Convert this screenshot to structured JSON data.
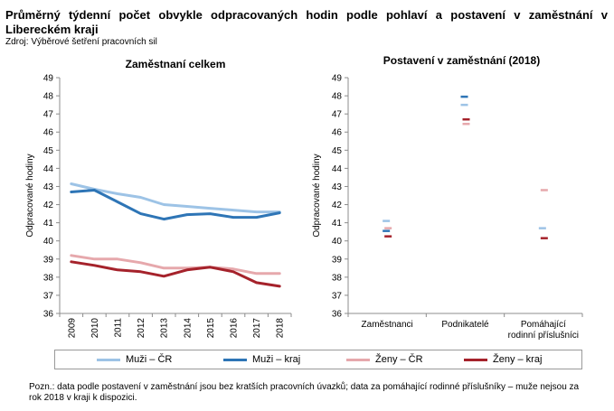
{
  "header": {
    "title": "Průměrný týdenní počet obvykle odpracovaných hodin podle pohlaví a postavení v zaměstnání v Libereckém kraji",
    "source": "Zdroj: Výběrové šetření pracovních sil"
  },
  "legend": {
    "items": [
      {
        "label": "Muži – ČR",
        "color": "#9dc3e6"
      },
      {
        "label": "Muži – kraj",
        "color": "#2e75b6"
      },
      {
        "label": "Ženy – ČR",
        "color": "#e6a8ac"
      },
      {
        "label": "Ženy – kraj",
        "color": "#a5222b"
      }
    ]
  },
  "note": "Pozn.: data podle postavení v zaměstnání jsou bez kratších pracovních úvazků; data za pomáhající rodinné příslušníky – muže nejsou za rok 2018 v kraji k dispozici.",
  "chart_data": [
    {
      "type": "line",
      "title": "Zaměstnaní celkem",
      "xlabel": "",
      "ylabel": "Odpracované hodiny",
      "ylim": [
        36,
        49
      ],
      "yticks": [
        36,
        37,
        38,
        39,
        40,
        41,
        42,
        43,
        44,
        45,
        46,
        47,
        48,
        49
      ],
      "grid": false,
      "categories": [
        "2009",
        "2010",
        "2011",
        "2012",
        "2013",
        "2014",
        "2015",
        "2016",
        "2017",
        "2018"
      ],
      "series": [
        {
          "name": "Muži – ČR",
          "color": "#9dc3e6",
          "values": [
            43.15,
            42.85,
            42.6,
            42.4,
            42.0,
            41.9,
            41.8,
            41.7,
            41.6,
            41.6
          ]
        },
        {
          "name": "Muži – kraj",
          "color": "#2e75b6",
          "values": [
            42.7,
            42.8,
            42.15,
            41.5,
            41.2,
            41.45,
            41.5,
            41.3,
            41.3,
            41.55
          ]
        },
        {
          "name": "Ženy – ČR",
          "color": "#e6a8ac",
          "values": [
            39.2,
            39.0,
            39.0,
            38.8,
            38.5,
            38.5,
            38.55,
            38.45,
            38.2,
            38.2
          ]
        },
        {
          "name": "Ženy – kraj",
          "color": "#a5222b",
          "values": [
            38.85,
            38.65,
            38.4,
            38.3,
            38.05,
            38.4,
            38.55,
            38.3,
            37.7,
            37.5
          ]
        }
      ]
    },
    {
      "type": "scatter",
      "title": "Postavení v zaměstnání (2018)",
      "xlabel": "",
      "ylabel": "Odpracované hodiny",
      "ylim": [
        36,
        49
      ],
      "yticks": [
        36,
        37,
        38,
        39,
        40,
        41,
        42,
        43,
        44,
        45,
        46,
        47,
        48,
        49
      ],
      "grid": false,
      "categories": [
        "Zaměstnanci",
        "Podnikatelé",
        "Pomáhající rodinní příslušníci"
      ],
      "category_lines": [
        [
          "Zaměstnanci"
        ],
        [
          "Podnikatelé"
        ],
        [
          "Pomáhající",
          "rodinní příslušníci"
        ]
      ],
      "series": [
        {
          "name": "Muži – ČR",
          "color": "#9dc3e6",
          "values": [
            41.1,
            47.5,
            40.7
          ]
        },
        {
          "name": "Muži – kraj",
          "color": "#2e75b6",
          "values": [
            40.55,
            47.95,
            null
          ]
        },
        {
          "name": "Ženy – ČR",
          "color": "#e6a8ac",
          "values": [
            40.7,
            46.45,
            42.8
          ]
        },
        {
          "name": "Ženy – kraj",
          "color": "#a5222b",
          "values": [
            40.25,
            46.7,
            40.15
          ]
        }
      ]
    }
  ]
}
